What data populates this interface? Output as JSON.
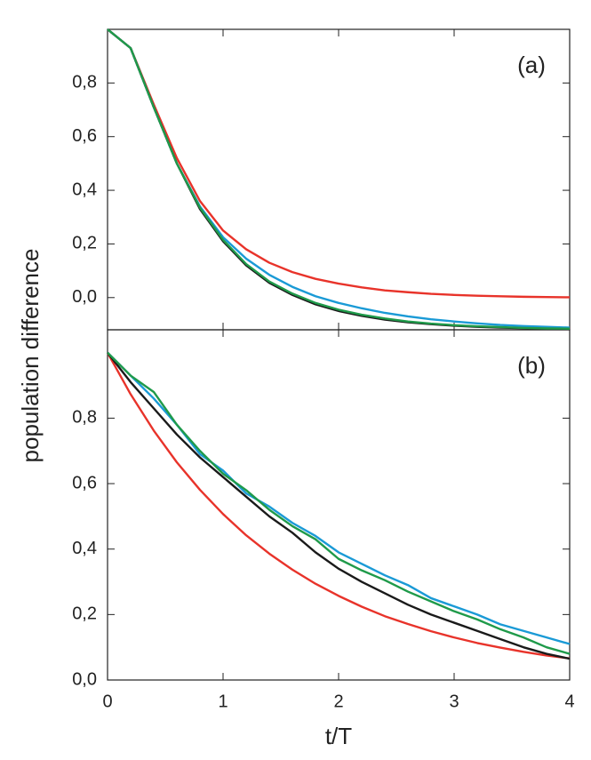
{
  "chart_data": [
    {
      "type": "line",
      "annotation": "(a)",
      "ylabel": "population difference",
      "x": [
        0,
        0.2,
        0.4,
        0.6,
        0.8,
        1.0,
        1.2,
        1.4,
        1.6,
        1.8,
        2.0,
        2.2,
        2.4,
        2.6,
        2.8,
        3.0,
        3.2,
        3.4,
        3.6,
        3.8,
        4.0
      ],
      "xlim": [
        0,
        4
      ],
      "xticks": [
        0,
        1,
        2,
        3,
        4
      ],
      "ylim": [
        -0.12,
        1.0
      ],
      "yticks": [
        {
          "value": 0.0,
          "label": "0,0"
        },
        {
          "value": 0.2,
          "label": "0,2"
        },
        {
          "value": 0.4,
          "label": "0,4"
        },
        {
          "value": 0.6,
          "label": "0,6"
        },
        {
          "value": 0.8,
          "label": "0,8"
        }
      ],
      "series": [
        {
          "color": "#e8332a",
          "values": [
            1,
            0.93,
            0.72,
            0.52,
            0.36,
            0.25,
            0.18,
            0.13,
            0.095,
            0.07,
            0.052,
            0.038,
            0.027,
            0.02,
            0.014,
            0.01,
            0.007,
            0.005,
            0.003,
            0.002,
            0.001
          ]
        },
        {
          "color": "#1a9ad6",
          "values": [
            1,
            0.93,
            0.71,
            0.5,
            0.34,
            0.225,
            0.145,
            0.085,
            0.04,
            0.005,
            -0.02,
            -0.04,
            -0.057,
            -0.07,
            -0.081,
            -0.089,
            -0.096,
            -0.102,
            -0.106,
            -0.109,
            -0.112
          ]
        },
        {
          "color": "#1a1a1a",
          "values": [
            1,
            0.93,
            0.71,
            0.5,
            0.33,
            0.21,
            0.12,
            0.055,
            0.01,
            -0.025,
            -0.05,
            -0.068,
            -0.082,
            -0.092,
            -0.099,
            -0.105,
            -0.109,
            -0.112,
            -0.114,
            -0.116,
            -0.117
          ]
        },
        {
          "color": "#1f9a4a",
          "values": [
            1,
            0.93,
            0.71,
            0.5,
            0.335,
            0.215,
            0.125,
            0.06,
            0.015,
            -0.02,
            -0.045,
            -0.064,
            -0.078,
            -0.089,
            -0.097,
            -0.103,
            -0.107,
            -0.11,
            -0.113,
            -0.115,
            -0.116
          ]
        }
      ]
    },
    {
      "type": "line",
      "annotation": "(b)",
      "xlabel": "t/T",
      "x": [
        0,
        0.2,
        0.4,
        0.6,
        0.8,
        1.0,
        1.2,
        1.4,
        1.6,
        1.8,
        2.0,
        2.2,
        2.4,
        2.6,
        2.8,
        3.0,
        3.2,
        3.4,
        3.6,
        3.8,
        4.0
      ],
      "xlim": [
        0,
        4
      ],
      "xticks": [
        0,
        1,
        2,
        3,
        4
      ],
      "ylim": [
        0,
        1.07
      ],
      "yticks": [
        {
          "value": 0.0,
          "label": "0,0"
        },
        {
          "value": 0.2,
          "label": "0,2"
        },
        {
          "value": 0.4,
          "label": "0,4"
        },
        {
          "value": 0.6,
          "label": "0,6"
        },
        {
          "value": 0.8,
          "label": "0,8"
        }
      ],
      "series": [
        {
          "color": "#e8332a",
          "values": [
            1,
            0.873,
            0.762,
            0.665,
            0.581,
            0.507,
            0.442,
            0.386,
            0.337,
            0.294,
            0.257,
            0.224,
            0.195,
            0.171,
            0.149,
            0.13,
            0.113,
            0.099,
            0.086,
            0.075,
            0.066
          ]
        },
        {
          "color": "#1a9ad6",
          "values": [
            1,
            0.93,
            0.86,
            0.78,
            0.69,
            0.64,
            0.57,
            0.53,
            0.48,
            0.44,
            0.39,
            0.355,
            0.32,
            0.29,
            0.25,
            0.225,
            0.2,
            0.17,
            0.15,
            0.13,
            0.11
          ]
        },
        {
          "color": "#1a1a1a",
          "values": [
            1,
            0.91,
            0.83,
            0.75,
            0.68,
            0.62,
            0.56,
            0.5,
            0.45,
            0.39,
            0.34,
            0.3,
            0.265,
            0.23,
            0.2,
            0.175,
            0.15,
            0.125,
            0.1,
            0.08,
            0.065
          ]
        },
        {
          "color": "#1f9a4a",
          "values": [
            1,
            0.93,
            0.88,
            0.78,
            0.7,
            0.63,
            0.58,
            0.52,
            0.47,
            0.43,
            0.37,
            0.335,
            0.305,
            0.27,
            0.24,
            0.21,
            0.185,
            0.155,
            0.13,
            0.1,
            0.08
          ]
        }
      ]
    }
  ]
}
